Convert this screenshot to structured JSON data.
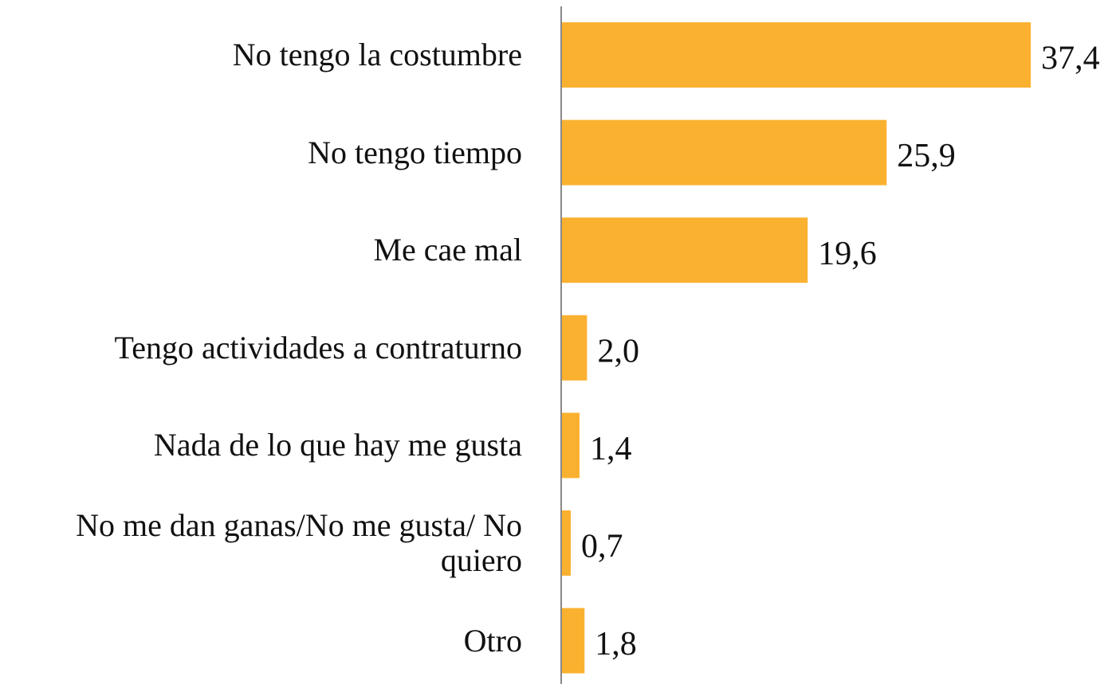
{
  "chart_data": {
    "type": "barh",
    "categories": [
      "No tengo la costumbre",
      "No tengo tiempo",
      "Me cae mal",
      "Tengo actividades a contraturno",
      "Nada de lo que hay me gusta",
      "No me dan ganas/No me gusta/ No quiero",
      "Otro"
    ],
    "values": [
      37.4,
      25.9,
      19.6,
      2.0,
      1.4,
      0.7,
      1.8
    ],
    "value_labels": [
      "37,4",
      "25,9",
      "19,6",
      "2,0",
      "1,4",
      "0,7",
      "1,8"
    ],
    "color": "#fbb130",
    "xlim": [
      0,
      40
    ]
  }
}
